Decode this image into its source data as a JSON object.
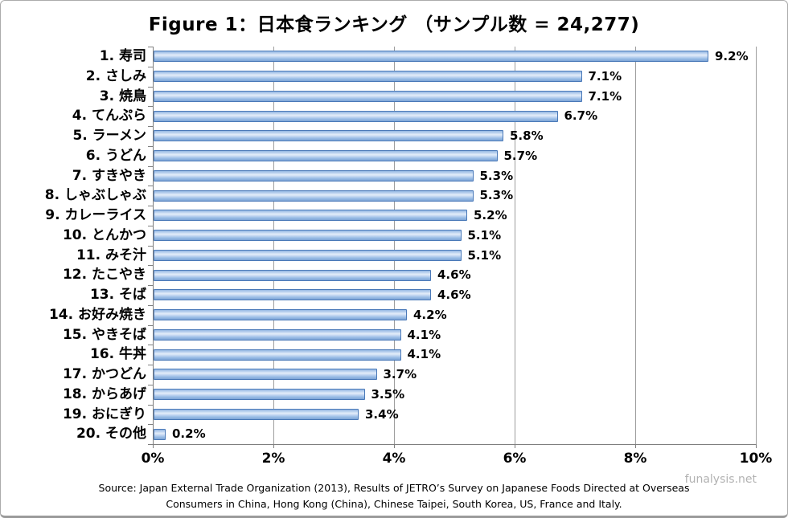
{
  "title": "Figure 1：日本食ランキング （サンプル数 = 24,277)",
  "watermark": "funalysis.net",
  "source": {
    "line1": "Source: Japan External Trade Organization (2013),  Results of JETRO’s Survey on Japanese Foods Directed at Overseas",
    "line2": "Consumers in China, Hong Kong (China), Chinese Taipei, South Korea, US, France and Italy."
  },
  "chart_data": {
    "type": "bar",
    "orientation": "horizontal",
    "title": "Figure 1：日本食ランキング （サンプル数 = 24,277)",
    "categories": [
      "1. 寿司",
      "2. さしみ",
      "3. 焼鳥",
      "4. てんぷら",
      "5. ラーメン",
      "6. うどん",
      "7. すきやき",
      "8. しゃぶしゃぶ",
      "9. カレーライス",
      "10. とんかつ",
      "11. みそ汁",
      "12. たこやき",
      "13. そば",
      "14. お好み焼き",
      "15. やきそば",
      "16. 牛丼",
      "17. かつどん",
      "18. からあげ",
      "19. おにぎり",
      "20. その他"
    ],
    "values": [
      9.2,
      7.1,
      7.1,
      6.7,
      5.8,
      5.7,
      5.3,
      5.3,
      5.2,
      5.1,
      5.1,
      4.6,
      4.6,
      4.2,
      4.1,
      4.1,
      3.7,
      3.5,
      3.4,
      0.2
    ],
    "value_labels": [
      "9.2%",
      "7.1%",
      "7.1%",
      "6.7%",
      "5.8%",
      "5.7%",
      "5.3%",
      "5.3%",
      "5.2%",
      "5.1%",
      "5.1%",
      "4.6%",
      "4.6%",
      "4.2%",
      "4.1%",
      "4.1%",
      "3.7%",
      "3.5%",
      "3.4%",
      "0.2%"
    ],
    "xlim": [
      0,
      10
    ],
    "x_tick_values": [
      0,
      2,
      4,
      6,
      8,
      10
    ],
    "x_tick_labels": [
      "0%",
      "2%",
      "4%",
      "6%",
      "8%",
      "10%"
    ],
    "grid": true,
    "legend": false,
    "bar_fill": "#b8d0ee",
    "bar_border": "#4a79b8",
    "gridline_color": "#9e9e9e"
  }
}
